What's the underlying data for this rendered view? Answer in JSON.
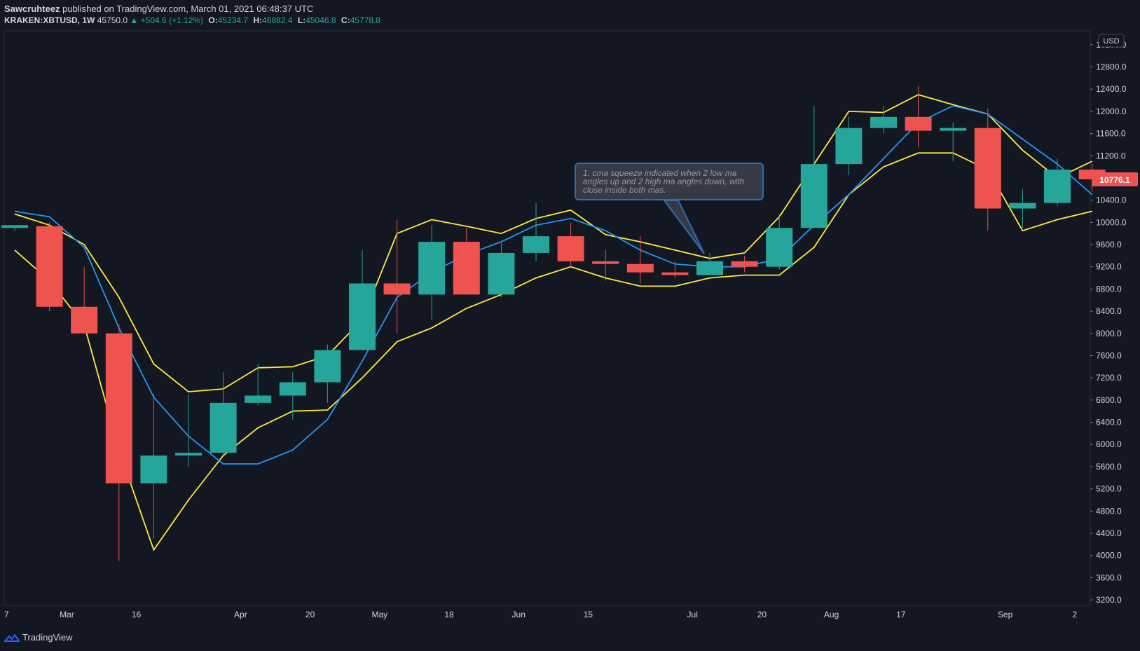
{
  "header": {
    "author": "Sawcruhteez",
    "published_text": "published on TradingView.com, March 01, 2021 06:48:37 UTC",
    "symbol": "KRAKEN:XBTUSD, 1W",
    "last": "45750.0",
    "change": "▲ +504.6 (+1.12%)",
    "o_label": "O:",
    "o_val": "45234.7",
    "h_label": "H:",
    "h_val": "46882.4",
    "l_label": "L:",
    "l_val": "45046.8",
    "c_label": "C:",
    "c_val": "45778.8"
  },
  "footer": {
    "brand": "TradingView",
    "logo_icon": "tradingview-logo-icon"
  },
  "annotation": {
    "text": "1. cma squeeze indicated when 2 low ma angles up and 2 high ma angles down, with close inside both mas."
  },
  "colors": {
    "background": "#131722",
    "up": "#26a69a",
    "down": "#ef5350",
    "ma_yellow": "#ffeb3b",
    "ma_blue": "#2196f3",
    "text": "#d1d4dc"
  },
  "chart_data": {
    "type": "candlestick",
    "currency_label": "USD",
    "price_label": "10776.1",
    "y_ticks": [
      "3200.0",
      "3600.0",
      "4000.0",
      "4400.0",
      "4800.0",
      "5200.0",
      "5600.0",
      "6000.0",
      "6400.0",
      "6800.0",
      "7200.0",
      "7600.0",
      "8000.0",
      "8400.0",
      "8800.0",
      "9200.0",
      "9600.0",
      "10000.0",
      "10400.0",
      "10800.0",
      "11200.0",
      "11600.0",
      "12000.0",
      "12400.0",
      "12800.0",
      "13200.0"
    ],
    "ylim": [
      3100,
      13450
    ],
    "x_labels": [
      {
        "i": -1,
        "label": "7"
      },
      {
        "i": 1,
        "label": "Mar"
      },
      {
        "i": 3,
        "label": "16"
      },
      {
        "i": 6,
        "label": "Apr"
      },
      {
        "i": 8,
        "label": "20"
      },
      {
        "i": 10,
        "label": "May"
      },
      {
        "i": 12,
        "label": "18"
      },
      {
        "i": 14,
        "label": "Jun"
      },
      {
        "i": 16,
        "label": "15"
      },
      {
        "i": 19,
        "label": "Jul"
      },
      {
        "i": 21,
        "label": "20"
      },
      {
        "i": 23,
        "label": "Aug"
      },
      {
        "i": 25,
        "label": "17"
      },
      {
        "i": 28,
        "label": "Sep"
      },
      {
        "i": 30,
        "label": "2"
      }
    ],
    "candles": [
      {
        "o": 9900,
        "h": 9950,
        "l": 9850,
        "c": 9950
      },
      {
        "o": 9930,
        "h": 10000,
        "l": 8400,
        "c": 8480
      },
      {
        "o": 8480,
        "h": 9200,
        "l": 8050,
        "c": 8000
      },
      {
        "o": 8000,
        "h": 8150,
        "l": 3900,
        "c": 5300
      },
      {
        "o": 5300,
        "h": 6900,
        "l": 4300,
        "c": 5800
      },
      {
        "o": 5800,
        "h": 6900,
        "l": 5600,
        "c": 5850
      },
      {
        "o": 5850,
        "h": 7300,
        "l": 5800,
        "c": 6750
      },
      {
        "o": 6750,
        "h": 7450,
        "l": 6700,
        "c": 6880
      },
      {
        "o": 6880,
        "h": 7300,
        "l": 6450,
        "c": 7120
      },
      {
        "o": 7120,
        "h": 7800,
        "l": 6750,
        "c": 7700
      },
      {
        "o": 7700,
        "h": 9500,
        "l": 7700,
        "c": 8900
      },
      {
        "o": 8900,
        "h": 10050,
        "l": 8000,
        "c": 8700
      },
      {
        "o": 8700,
        "h": 9950,
        "l": 8250,
        "c": 9650
      },
      {
        "o": 9650,
        "h": 9900,
        "l": 8700,
        "c": 8700
      },
      {
        "o": 8700,
        "h": 9650,
        "l": 8650,
        "c": 9450
      },
      {
        "o": 9450,
        "h": 10350,
        "l": 9300,
        "c": 9750
      },
      {
        "o": 9750,
        "h": 10000,
        "l": 9200,
        "c": 9300
      },
      {
        "o": 9300,
        "h": 9500,
        "l": 8950,
        "c": 9250
      },
      {
        "o": 9250,
        "h": 9750,
        "l": 8900,
        "c": 9100
      },
      {
        "o": 9100,
        "h": 9300,
        "l": 9000,
        "c": 9050
      },
      {
        "o": 9050,
        "h": 9450,
        "l": 9050,
        "c": 9300
      },
      {
        "o": 9300,
        "h": 9400,
        "l": 9100,
        "c": 9200
      },
      {
        "o": 9200,
        "h": 10150,
        "l": 9150,
        "c": 9900
      },
      {
        "o": 9900,
        "h": 12100,
        "l": 9900,
        "c": 11050
      },
      {
        "o": 11050,
        "h": 11900,
        "l": 10850,
        "c": 11700
      },
      {
        "o": 11700,
        "h": 12100,
        "l": 11600,
        "c": 11900
      },
      {
        "o": 11900,
        "h": 12450,
        "l": 11350,
        "c": 11650
      },
      {
        "o": 11650,
        "h": 11800,
        "l": 11100,
        "c": 11700
      },
      {
        "o": 11700,
        "h": 12050,
        "l": 9850,
        "c": 10250
      },
      {
        "o": 10250,
        "h": 10600,
        "l": 9900,
        "c": 10350
      },
      {
        "o": 10350,
        "h": 11150,
        "l": 10300,
        "c": 10950
      },
      {
        "o": 10950,
        "h": 11050,
        "l": 10550,
        "c": 10776
      }
    ],
    "series": [
      {
        "values": [
          10150,
          9950,
          9600,
          8650,
          7450,
          6950,
          7000,
          7380,
          7400,
          7600,
          8250,
          9800,
          10050,
          9930,
          9800,
          10070,
          10220,
          9780,
          9650,
          9500,
          9350,
          9450,
          10100,
          11050,
          12000,
          11980,
          12300,
          12120,
          11950,
          11300,
          10800,
          11100
        ]
      },
      {
        "values": [
          9500,
          8950,
          8150,
          5900,
          4100,
          5000,
          5800,
          6300,
          6600,
          6620,
          7200,
          7850,
          8100,
          8450,
          8700,
          9000,
          9200,
          9000,
          8850,
          8850,
          9000,
          9050,
          9050,
          9550,
          10500,
          11000,
          11250,
          11250,
          10950,
          9850,
          10050,
          10200
        ]
      },
      {
        "values": [
          10200,
          10100,
          9550,
          8100,
          6850,
          6150,
          5650,
          5650,
          5900,
          6450,
          7500,
          8650,
          9100,
          9420,
          9650,
          9950,
          10070,
          9850,
          9500,
          9250,
          9200,
          9200,
          9350,
          9950,
          10500,
          11150,
          11800,
          12100,
          11950,
          11500,
          11050,
          10500
        ]
      }
    ]
  }
}
